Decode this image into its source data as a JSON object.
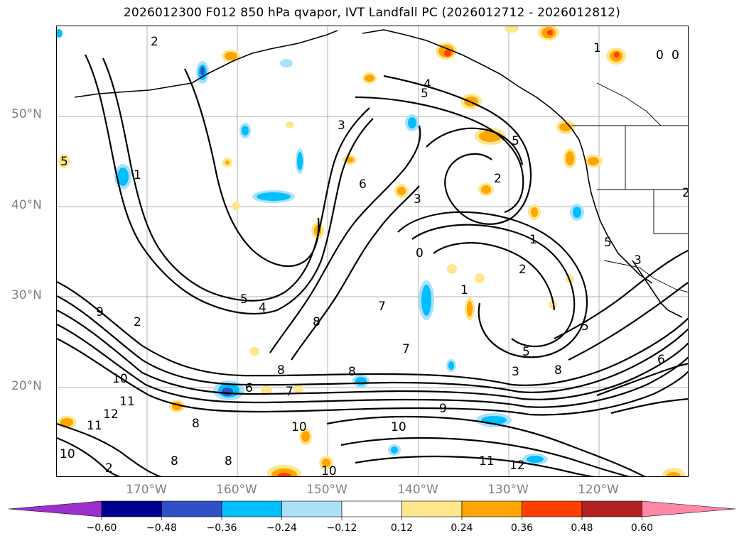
{
  "title": "2026012300 F012 850 hPa qvapor, IVT Landfall PC (2026012712 - 2026012812)",
  "lat_labels": [
    "50°N",
    "40°N",
    "30°N",
    "20°N"
  ],
  "lon_labels": [
    "170°W",
    "160°W",
    "150°W",
    "140°W",
    "130°W",
    "120°W"
  ],
  "colorbar": {
    "ticks": [
      "−0.60",
      "−0.48",
      "−0.36",
      "−0.24",
      "−0.12",
      "0.12",
      "0.24",
      "0.36",
      "0.48",
      "0.60"
    ],
    "colors": [
      "#9b30cc",
      "#000090",
      "#3050c8",
      "#00bfff",
      "#abe0f8",
      "#ffffff",
      "#ffe68c",
      "#ffa500",
      "#ff4000",
      "#b22222",
      "#ff88aa"
    ],
    "extend": "both"
  },
  "contour_labels": [
    "2",
    "3",
    "1",
    "4",
    "5",
    "6",
    "7",
    "8",
    "9",
    "10",
    "11",
    "12",
    "0"
  ]
}
